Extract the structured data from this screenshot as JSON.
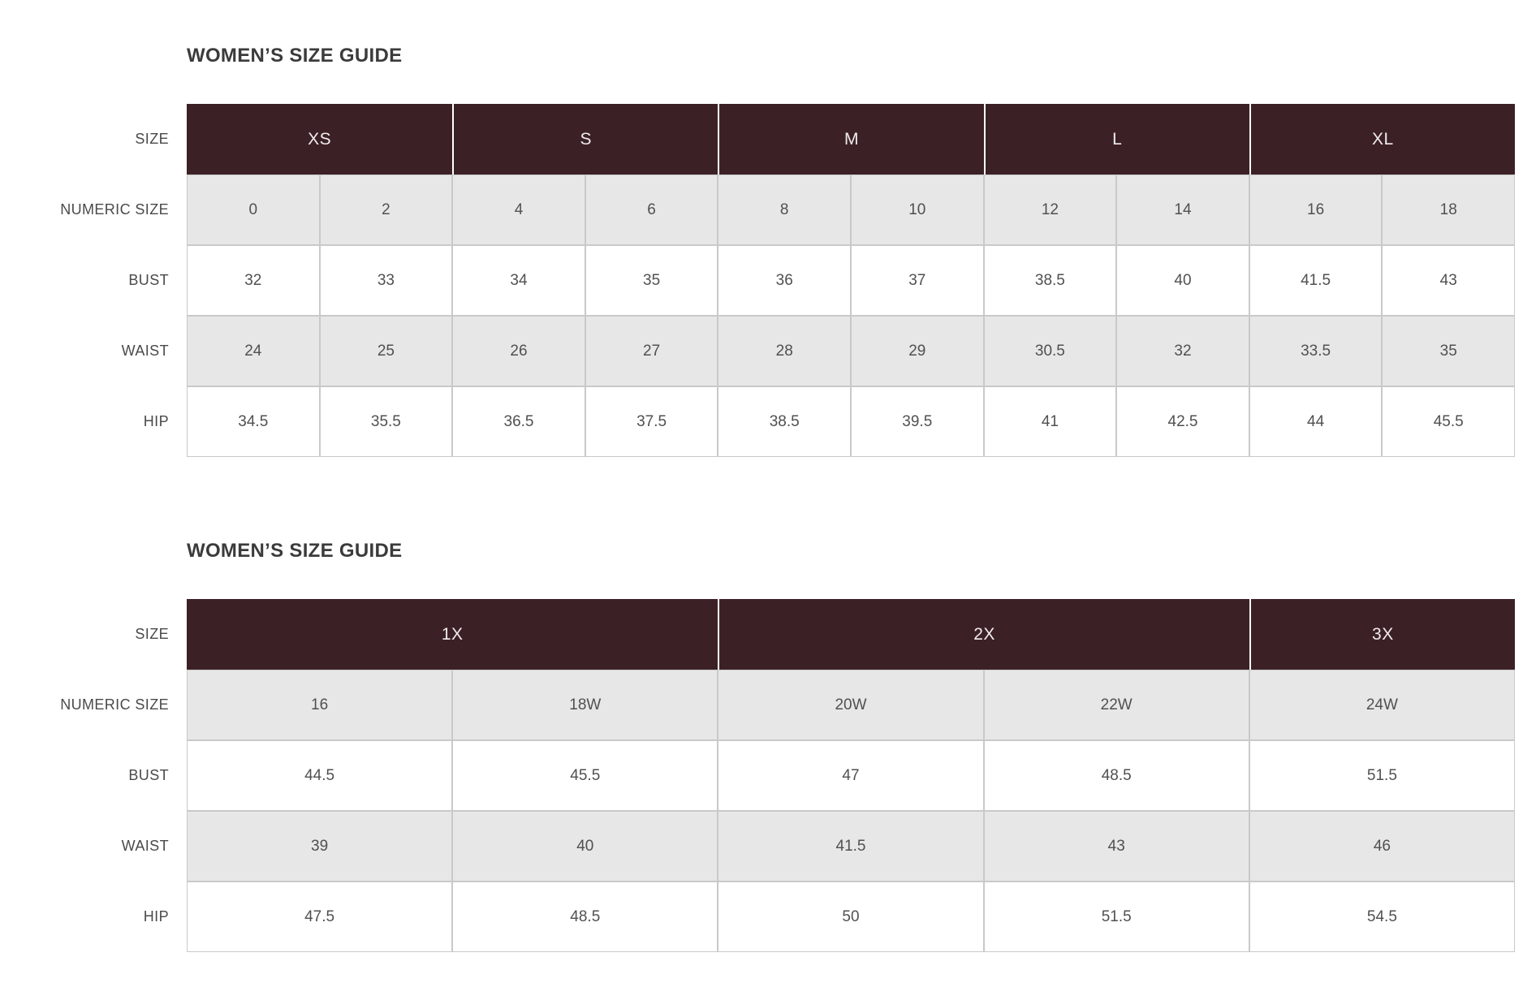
{
  "colors": {
    "header_background": "#3b2126",
    "header_text": "#f1ecec",
    "shaded_row_background": "#e7e7e7",
    "plain_row_background": "#ffffff",
    "cell_border": "#c9c9c9",
    "cell_text": "#505050",
    "title_text": "#3b3b3b"
  },
  "tables": [
    {
      "title": "WOMEN’S SIZE GUIDE",
      "size_row_label": "SIZE",
      "groups": [
        {
          "label": "XS",
          "span": 2
        },
        {
          "label": "S",
          "span": 2
        },
        {
          "label": "M",
          "span": 2
        },
        {
          "label": "L",
          "span": 2
        },
        {
          "label": "XL",
          "span": 2
        }
      ],
      "rows": [
        {
          "label": "NUMERIC SIZE",
          "values": [
            "0",
            "2",
            "4",
            "6",
            "8",
            "10",
            "12",
            "14",
            "16",
            "18"
          ]
        },
        {
          "label": "BUST",
          "values": [
            "32",
            "33",
            "34",
            "35",
            "36",
            "37",
            "38.5",
            "40",
            "41.5",
            "43"
          ]
        },
        {
          "label": "WAIST",
          "values": [
            "24",
            "25",
            "26",
            "27",
            "28",
            "29",
            "30.5",
            "32",
            "33.5",
            "35"
          ]
        },
        {
          "label": "HIP",
          "values": [
            "34.5",
            "35.5",
            "36.5",
            "37.5",
            "38.5",
            "39.5",
            "41",
            "42.5",
            "44",
            "45.5"
          ]
        }
      ]
    },
    {
      "title": "WOMEN’S SIZE GUIDE",
      "size_row_label": "SIZE",
      "groups": [
        {
          "label": "1X",
          "span": 2
        },
        {
          "label": "2X",
          "span": 2
        },
        {
          "label": "3X",
          "span": 1
        }
      ],
      "rows": [
        {
          "label": "NUMERIC SIZE",
          "values": [
            "16",
            "18W",
            "20W",
            "22W",
            "24W"
          ]
        },
        {
          "label": "BUST",
          "values": [
            "44.5",
            "45.5",
            "47",
            "48.5",
            "51.5"
          ]
        },
        {
          "label": "WAIST",
          "values": [
            "39",
            "40",
            "41.5",
            "43",
            "46"
          ]
        },
        {
          "label": "HIP",
          "values": [
            "47.5",
            "48.5",
            "50",
            "51.5",
            "54.5"
          ]
        }
      ]
    }
  ]
}
